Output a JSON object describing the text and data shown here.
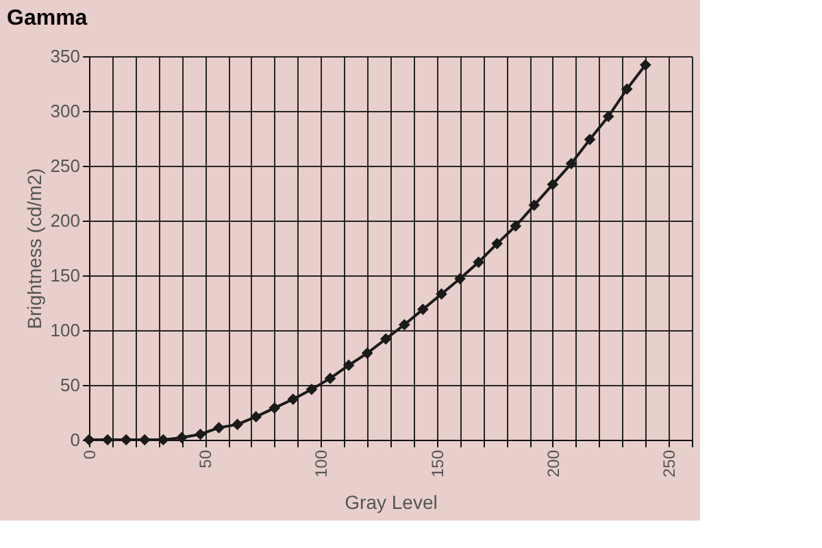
{
  "chart_data": {
    "type": "line",
    "title": "Gamma",
    "xlabel": "Gray Level",
    "ylabel": "Brightness (cd/m2)",
    "x": [
      0,
      8,
      16,
      24,
      32,
      40,
      48,
      56,
      64,
      72,
      80,
      88,
      96,
      104,
      112,
      120,
      128,
      136,
      144,
      152,
      160,
      168,
      176,
      184,
      192,
      200,
      208,
      216,
      224,
      232,
      240
    ],
    "series": [
      {
        "color": "#1a1a1a",
        "values": [
          0,
          0,
          0,
          0,
          0,
          2,
          5,
          11,
          14,
          21,
          29,
          37,
          46,
          56,
          68,
          79,
          92,
          105,
          119,
          133,
          147,
          162,
          179,
          195,
          214,
          233,
          252,
          274,
          295,
          320,
          342
        ]
      }
    ],
    "xlim": [
      0,
      260
    ],
    "xticks": [
      0,
      {
        "value": 10,
        "label": null
      },
      {
        "value": 20,
        "label": null
      },
      {
        "value": 30,
        "label": null
      },
      {
        "value": 40,
        "label": null
      },
      50,
      {
        "value": 60,
        "label": null
      },
      {
        "value": 70,
        "label": null
      },
      {
        "value": 80,
        "label": null
      },
      {
        "value": 90,
        "label": null
      },
      100,
      {
        "value": 110,
        "label": null
      },
      {
        "value": 120,
        "label": null
      },
      {
        "value": 130,
        "label": null
      },
      {
        "value": 140,
        "label": null
      },
      150,
      {
        "value": 160,
        "label": null
      },
      {
        "value": 170,
        "label": null
      },
      {
        "value": 180,
        "label": null
      },
      {
        "value": 190,
        "label": null
      },
      200,
      {
        "value": 210,
        "label": null
      },
      {
        "value": 220,
        "label": null
      },
      {
        "value": 230,
        "label": null
      },
      {
        "value": 240,
        "label": null
      },
      250,
      {
        "value": 260,
        "label": null
      }
    ],
    "ylim": [
      0,
      350
    ],
    "yticks": [
      0,
      50,
      100,
      150,
      200,
      250,
      300,
      350
    ],
    "grid": true,
    "marker": "diamond",
    "line_style": "solid"
  }
}
